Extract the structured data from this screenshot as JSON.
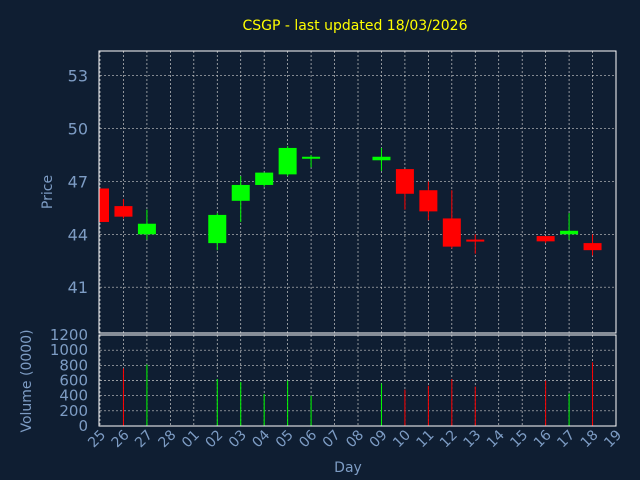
{
  "chart_data": [
    {
      "type": "candlestick",
      "title": "CSGP - last updated 18/03/2026",
      "ylabel": "Price",
      "ylim": [
        38.4,
        54.4
      ],
      "yticks": [
        41,
        44,
        47,
        50,
        53
      ],
      "grid": true,
      "colors": {
        "up": "#00ff00",
        "down": "#ff0000",
        "background": "#0f1e32",
        "text": "#7d9cc4",
        "title": "#ffff00"
      },
      "candles": [
        {
          "day": "25",
          "open": 46.6,
          "high": 46.6,
          "low": 44.7,
          "close": 44.7
        },
        {
          "day": "26",
          "open": 45.6,
          "high": 46.0,
          "low": 44.9,
          "close": 45.0
        },
        {
          "day": "27",
          "open": 44.0,
          "high": 45.4,
          "low": 43.7,
          "close": 44.6
        },
        {
          "day": "02",
          "open": 43.5,
          "high": 45.2,
          "low": 43.1,
          "close": 45.1
        },
        {
          "day": "03",
          "open": 45.9,
          "high": 47.3,
          "low": 44.7,
          "close": 46.8
        },
        {
          "day": "04",
          "open": 46.8,
          "high": 47.5,
          "low": 46.7,
          "close": 47.5
        },
        {
          "day": "05",
          "open": 47.4,
          "high": 49.0,
          "low": 47.3,
          "close": 48.9
        },
        {
          "day": "06",
          "open": 48.3,
          "high": 48.5,
          "low": 47.8,
          "close": 48.4
        },
        {
          "day": "09",
          "open": 48.2,
          "high": 48.9,
          "low": 47.6,
          "close": 48.4
        },
        {
          "day": "10",
          "open": 47.7,
          "high": 47.7,
          "low": 45.4,
          "close": 46.3
        },
        {
          "day": "11",
          "open": 46.5,
          "high": 47.0,
          "low": 44.8,
          "close": 45.3
        },
        {
          "day": "12",
          "open": 44.9,
          "high": 46.5,
          "low": 43.2,
          "close": 43.3
        },
        {
          "day": "13",
          "open": 43.7,
          "high": 44.0,
          "low": 42.9,
          "close": 43.6
        },
        {
          "day": "16",
          "open": 43.9,
          "high": 43.9,
          "low": 43.5,
          "close": 43.6
        },
        {
          "day": "17",
          "open": 44.0,
          "high": 45.2,
          "low": 43.7,
          "close": 44.2
        },
        {
          "day": "18",
          "open": 43.5,
          "high": 44.0,
          "low": 42.8,
          "close": 43.1
        }
      ]
    },
    {
      "type": "bar",
      "ylabel": "Volume (0000)",
      "xlabel": "Day",
      "ylim": [
        0,
        1200
      ],
      "yticks": [
        0,
        200,
        400,
        600,
        800,
        1000,
        1200
      ],
      "grid": true,
      "categories": [
        "25",
        "26",
        "27",
        "28",
        "01",
        "02",
        "03",
        "04",
        "05",
        "06",
        "07",
        "08",
        "09",
        "10",
        "11",
        "12",
        "13",
        "14",
        "15",
        "16",
        "17",
        "18",
        "19"
      ],
      "volumes": [
        {
          "day": "26",
          "value": 760,
          "direction": "down"
        },
        {
          "day": "27",
          "value": 810,
          "direction": "up"
        },
        {
          "day": "02",
          "value": 620,
          "direction": "up"
        },
        {
          "day": "03",
          "value": 580,
          "direction": "up"
        },
        {
          "day": "04",
          "value": 420,
          "direction": "up"
        },
        {
          "day": "05",
          "value": 600,
          "direction": "up"
        },
        {
          "day": "06",
          "value": 400,
          "direction": "up"
        },
        {
          "day": "09",
          "value": 560,
          "direction": "up"
        },
        {
          "day": "10",
          "value": 480,
          "direction": "down"
        },
        {
          "day": "11",
          "value": 530,
          "direction": "down"
        },
        {
          "day": "12",
          "value": 620,
          "direction": "down"
        },
        {
          "day": "13",
          "value": 520,
          "direction": "down"
        },
        {
          "day": "16",
          "value": 600,
          "direction": "down"
        },
        {
          "day": "17",
          "value": 430,
          "direction": "up"
        },
        {
          "day": "18",
          "value": 840,
          "direction": "down"
        }
      ]
    }
  ]
}
